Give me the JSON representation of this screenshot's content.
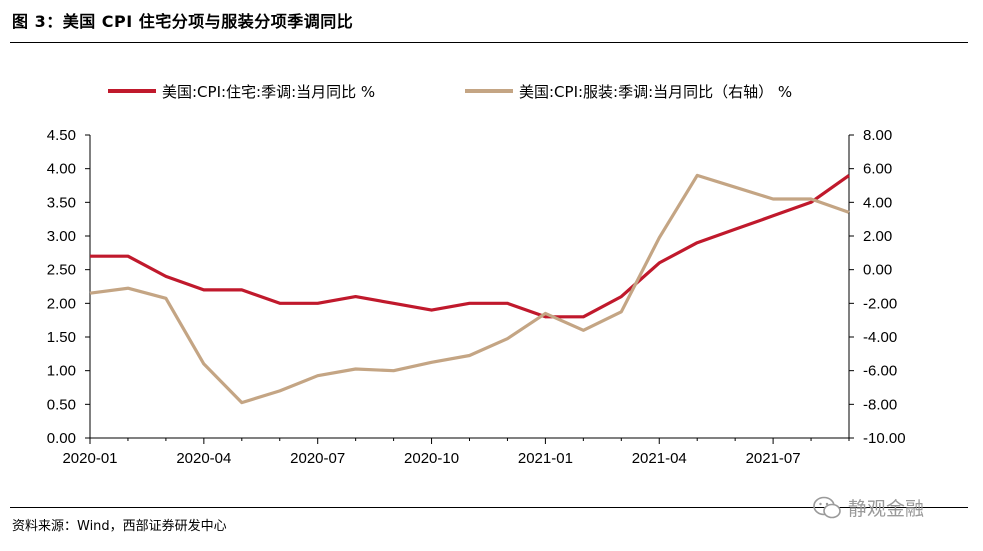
{
  "figure": {
    "title": "图 3：美国 CPI 住宅分项与服装分项季调同比",
    "source": "资料来源：Wind，西部证券研发中心",
    "watermark": "静观金融"
  },
  "colors": {
    "housing": "#C0192C",
    "apparel": "#C4A584"
  },
  "chart_data": {
    "type": "line",
    "x": [
      "2020-01",
      "2020-02",
      "2020-03",
      "2020-04",
      "2020-05",
      "2020-06",
      "2020-07",
      "2020-08",
      "2020-09",
      "2020-10",
      "2020-11",
      "2020-12",
      "2021-01",
      "2021-02",
      "2021-03",
      "2021-04",
      "2021-05",
      "2021-06",
      "2021-07",
      "2021-08",
      "2021-09"
    ],
    "x_tick_labels": [
      "2020-01",
      "2020-04",
      "2020-07",
      "2020-10",
      "2021-01",
      "2021-04",
      "2021-07"
    ],
    "series": [
      {
        "name": "美国:CPI:住宅:季调:当月同比 %",
        "axis": "left",
        "color": "#C0192C",
        "values": [
          2.7,
          2.7,
          2.4,
          2.2,
          2.2,
          2.0,
          2.0,
          2.1,
          2.0,
          1.9,
          2.0,
          2.0,
          1.8,
          1.8,
          2.1,
          2.6,
          2.9,
          3.1,
          3.3,
          3.5,
          3.9
        ]
      },
      {
        "name": "美国:CPI:服装:季调:当月同比（右轴） %",
        "axis": "right",
        "color": "#C4A584",
        "values": [
          -1.4,
          -1.1,
          -1.7,
          -5.6,
          -7.9,
          -7.2,
          -6.3,
          -5.9,
          -6.0,
          -5.5,
          -5.1,
          -4.1,
          -2.6,
          -3.6,
          -2.5,
          1.9,
          5.6,
          4.9,
          4.2,
          4.2,
          3.4
        ]
      }
    ],
    "y_left": {
      "min": 0,
      "max": 4.5,
      "ticks": [
        "0.00",
        "0.50",
        "1.00",
        "1.50",
        "2.00",
        "2.50",
        "3.00",
        "3.50",
        "4.00",
        "4.50"
      ]
    },
    "y_right": {
      "min": -10,
      "max": 8,
      "ticks": [
        "-10.00",
        "-8.00",
        "-6.00",
        "-4.00",
        "-2.00",
        "0.00",
        "2.00",
        "4.00",
        "6.00",
        "8.00"
      ]
    },
    "legend_position": "top",
    "grid": false
  }
}
